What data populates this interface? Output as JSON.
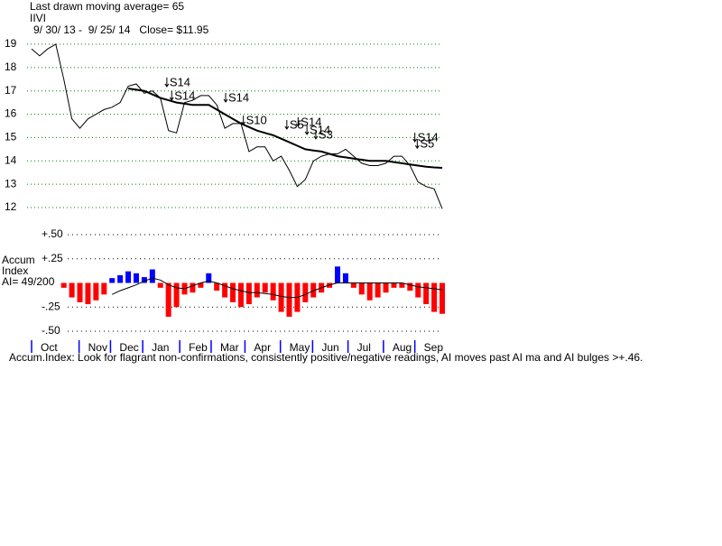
{
  "header": {
    "moving_average": "Last drawn moving average= 65",
    "symbol": "IIVI",
    "range": "9/ 30/ 13 -  9/ 25/ 14   Close= $11.95"
  },
  "footer": "Accum.Index: Look for flagrant non-confirmations, consistently positive/negative readings, AI moves past AI ma and AI bulges >+.46.",
  "chart_data": [
    {
      "type": "line",
      "xlim": [
        0,
        51
      ],
      "ylim": [
        12,
        19
      ],
      "yticks": [
        12,
        13,
        14,
        15,
        16,
        17,
        18,
        19
      ],
      "grid": true,
      "series": [
        {
          "color": "#000000",
          "values": [
            18.8,
            18.5,
            18.8,
            19.0,
            17.5,
            15.8,
            15.4,
            15.8,
            16.0,
            16.2,
            16.3,
            16.5,
            17.2,
            17.3,
            16.9,
            17.0,
            16.7,
            15.3,
            15.2,
            16.5,
            16.6,
            16.8,
            16.8,
            16.4,
            15.4,
            15.6,
            15.6,
            14.4,
            14.6,
            14.6,
            14.0,
            14.2,
            13.6,
            12.9,
            13.2,
            14.0,
            14.2,
            14.3,
            14.3,
            14.5,
            14.2,
            13.9,
            13.8,
            13.8,
            13.9,
            14.2,
            14.2,
            13.8,
            13.1,
            12.9,
            12.8,
            11.95
          ]
        },
        {
          "color": "#000000",
          "values": [
            null,
            null,
            null,
            null,
            null,
            null,
            null,
            null,
            null,
            null,
            null,
            null,
            17.1,
            17.05,
            17.0,
            16.85,
            16.7,
            16.6,
            16.5,
            16.45,
            16.4,
            16.4,
            16.4,
            16.2,
            16.0,
            15.8,
            15.6,
            15.45,
            15.3,
            15.2,
            15.1,
            14.95,
            14.8,
            14.65,
            14.5,
            14.45,
            14.4,
            14.3,
            14.2,
            14.15,
            14.1,
            14.05,
            14.0,
            14.0,
            14.0,
            13.95,
            13.9,
            13.85,
            13.8,
            13.75,
            13.72,
            13.7
          ]
        }
      ],
      "annotations": [
        {
          "text": "S14",
          "x": 16.8,
          "y": 17.34
        },
        {
          "text": "S14",
          "x": 17.4,
          "y": 16.76
        },
        {
          "text": "S14",
          "x": 24.1,
          "y": 16.68
        },
        {
          "text": "S10",
          "x": 26.3,
          "y": 15.71
        },
        {
          "text": "S5",
          "x": 31.7,
          "y": 15.52
        },
        {
          "text": "S14",
          "x": 33.1,
          "y": 15.64
        },
        {
          "text": "S14",
          "x": 34.2,
          "y": 15.29
        },
        {
          "text": "S3",
          "x": 35.3,
          "y": 15.1
        },
        {
          "text": "S14",
          "x": 47.6,
          "y": 14.98
        },
        {
          "text": "S5",
          "x": 47.9,
          "y": 14.7
        }
      ]
    },
    {
      "type": "bar",
      "title": "Accum",
      "subtitle": "Index",
      "ai_label": "AI= 49/200",
      "xlim": [
        0,
        51
      ],
      "ylim": [
        -0.5,
        0.5
      ],
      "yticks": [
        {
          "value": 0.5,
          "label": "+.50"
        },
        {
          "value": 0.25,
          "label": "+.25"
        },
        {
          "value": -0.25,
          "label": "-.25"
        },
        {
          "value": -0.5,
          "label": "-.50"
        }
      ],
      "grid": true,
      "positive_color": "#0000ff",
      "negative_color": "#ff0000",
      "xticks": [
        {
          "value": 0,
          "label": "Oct"
        },
        {
          "value": 5.9,
          "label": "Nov"
        },
        {
          "value": 9.8,
          "label": "Dec"
        },
        {
          "value": 13.8,
          "label": "Jan"
        },
        {
          "value": 18.4,
          "label": "Feb"
        },
        {
          "value": 22.3,
          "label": "Mar"
        },
        {
          "value": 26.5,
          "label": "Apr"
        },
        {
          "value": 30.9,
          "label": "May"
        },
        {
          "value": 34.9,
          "label": "Jun"
        },
        {
          "value": 39.3,
          "label": "Jul"
        },
        {
          "value": 43.7,
          "label": "Aug"
        },
        {
          "value": 47.6,
          "label": "Sep"
        }
      ],
      "values": [
        null,
        null,
        null,
        null,
        -0.05,
        -0.15,
        -0.2,
        -0.22,
        -0.18,
        -0.12,
        0.05,
        0.08,
        0.12,
        0.1,
        0.06,
        0.14,
        -0.05,
        -0.35,
        -0.25,
        -0.12,
        -0.1,
        -0.05,
        0.1,
        -0.08,
        -0.15,
        -0.2,
        -0.25,
        -0.22,
        -0.15,
        -0.1,
        -0.18,
        -0.3,
        -0.35,
        -0.3,
        -0.2,
        -0.15,
        -0.1,
        -0.05,
        0.17,
        0.1,
        -0.05,
        -0.12,
        -0.18,
        -0.15,
        -0.1,
        -0.05,
        -0.05,
        -0.08,
        -0.15,
        -0.22,
        -0.3,
        -0.32
      ],
      "ma": {
        "color": "#000000",
        "values": [
          null,
          null,
          null,
          null,
          null,
          null,
          null,
          null,
          null,
          null,
          -0.12,
          -0.08,
          -0.05,
          -0.02,
          0.02,
          0.05,
          0.03,
          -0.02,
          -0.05,
          -0.06,
          -0.03,
          0.0,
          0.02,
          0.0,
          -0.03,
          -0.06,
          -0.08,
          -0.1,
          -0.1,
          -0.11,
          -0.12,
          -0.14,
          -0.15,
          -0.15,
          -0.12,
          -0.08,
          -0.05,
          -0.02,
          0.0,
          0.0,
          0.0,
          0.0,
          0.0,
          0.0,
          0.0,
          0.0,
          0.0,
          -0.02,
          -0.04,
          -0.05,
          -0.06,
          -0.07
        ]
      }
    }
  ]
}
